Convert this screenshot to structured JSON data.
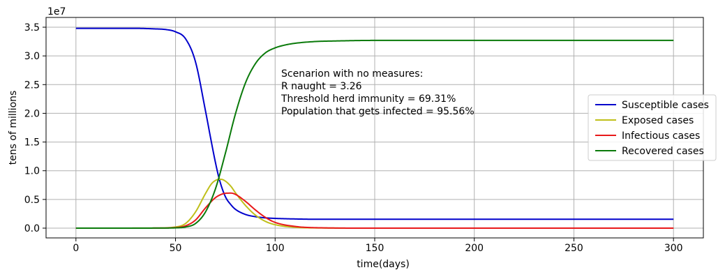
{
  "chart_data": {
    "type": "line",
    "title": "",
    "xlabel": "time(days)",
    "ylabel": "tens of millions",
    "y_scale_label": "1e7",
    "xlim": [
      -15,
      315
    ],
    "ylim": [
      -0.17,
      3.67
    ],
    "x_ticks": [
      0,
      50,
      100,
      150,
      200,
      250,
      300
    ],
    "x_tick_labels": [
      "0",
      "50",
      "100",
      "150",
      "200",
      "250",
      "300"
    ],
    "y_ticks": [
      0.0,
      0.5,
      1.0,
      1.5,
      2.0,
      2.5,
      3.0,
      3.5
    ],
    "y_tick_labels": [
      "0.0",
      "0.5",
      "1.0",
      "1.5",
      "2.0",
      "2.5",
      "3.0",
      "3.5"
    ],
    "grid": true,
    "legend_position": "center-right",
    "annotation": {
      "lines": [
        "Scenarion with no measures:",
        "R naught = 3.26",
        "Threshold herd immunity = 69.31%",
        "Population that gets infected = 95.56%"
      ]
    },
    "series": [
      {
        "name": "Susceptible cases",
        "color": "#0000cc",
        "x": [
          0,
          30,
          40,
          45,
          50,
          55,
          60,
          65,
          68,
          70,
          72,
          75,
          78,
          80,
          85,
          90,
          95,
          100,
          110,
          120,
          150,
          200,
          250,
          300
        ],
        "y": [
          3.48,
          3.48,
          3.47,
          3.46,
          3.42,
          3.3,
          2.9,
          2.05,
          1.5,
          1.15,
          0.85,
          0.55,
          0.4,
          0.33,
          0.24,
          0.2,
          0.18,
          0.17,
          0.16,
          0.155,
          0.155,
          0.155,
          0.155,
          0.155
        ]
      },
      {
        "name": "Exposed cases",
        "color": "#bfbf1a",
        "x": [
          0,
          40,
          50,
          55,
          60,
          65,
          68,
          70,
          72,
          73,
          75,
          78,
          80,
          85,
          90,
          95,
          100,
          110,
          120,
          150,
          200,
          250,
          300
        ],
        "y": [
          0,
          0.002,
          0.02,
          0.08,
          0.28,
          0.6,
          0.77,
          0.83,
          0.85,
          0.85,
          0.82,
          0.72,
          0.62,
          0.4,
          0.23,
          0.12,
          0.06,
          0.015,
          0.004,
          0,
          0,
          0,
          0
        ]
      },
      {
        "name": "Infectious cases",
        "color": "#e8191a",
        "x": [
          0,
          40,
          50,
          55,
          60,
          65,
          70,
          74,
          77,
          78,
          80,
          85,
          90,
          95,
          100,
          110,
          120,
          150,
          200,
          250,
          300
        ],
        "y": [
          0,
          0.001,
          0.01,
          0.04,
          0.14,
          0.35,
          0.53,
          0.6,
          0.61,
          0.61,
          0.59,
          0.47,
          0.32,
          0.19,
          0.1,
          0.03,
          0.008,
          0,
          0,
          0,
          0
        ]
      },
      {
        "name": "Recovered cases",
        "color": "#0a7a0a",
        "x": [
          0,
          40,
          50,
          55,
          60,
          65,
          70,
          75,
          80,
          85,
          90,
          95,
          100,
          105,
          110,
          120,
          130,
          150,
          200,
          250,
          300
        ],
        "y": [
          0,
          0.001,
          0.005,
          0.02,
          0.08,
          0.28,
          0.68,
          1.3,
          1.98,
          2.52,
          2.86,
          3.05,
          3.14,
          3.19,
          3.22,
          3.25,
          3.26,
          3.27,
          3.27,
          3.27,
          3.27
        ]
      }
    ]
  }
}
